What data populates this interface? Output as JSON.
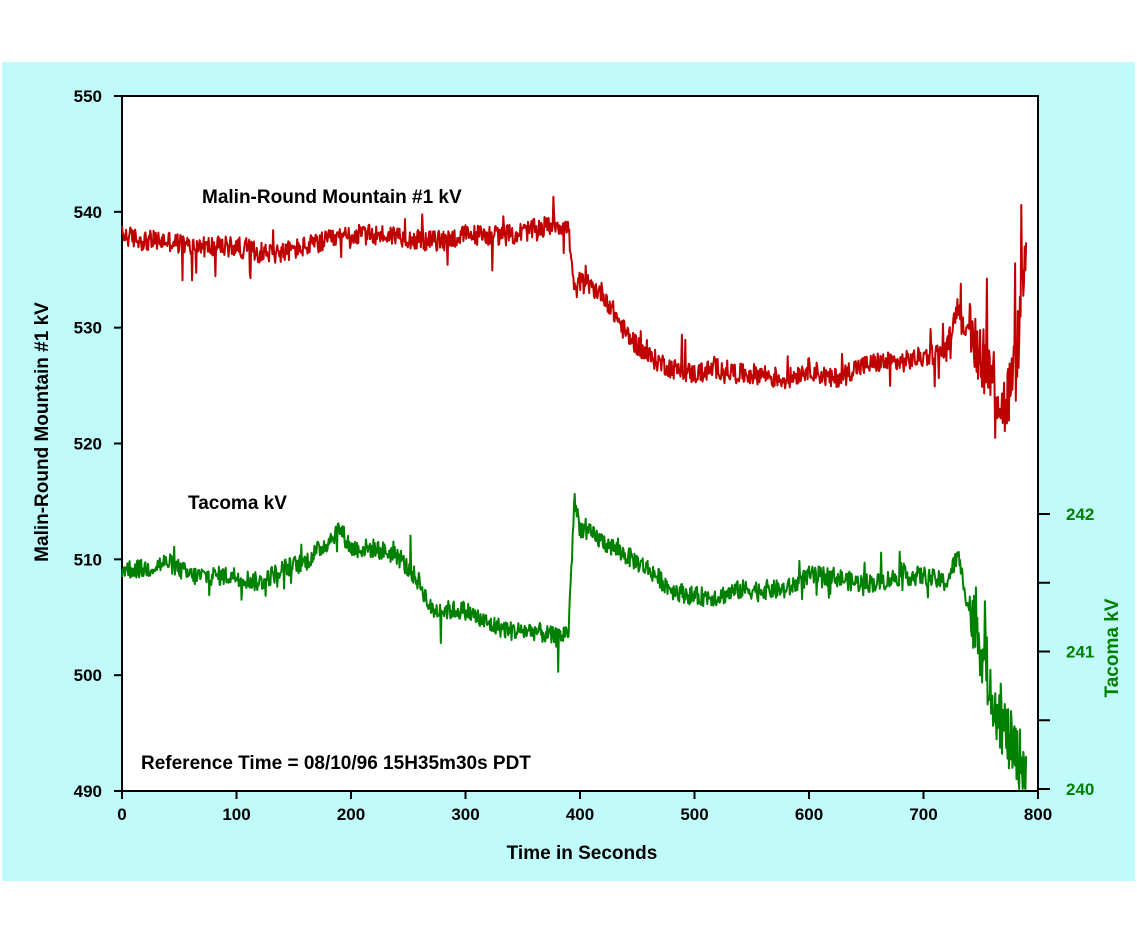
{
  "chart_data": {
    "type": "line",
    "title": "",
    "xlabel": "Time in Seconds",
    "ylabel": "Malin-Round Mountain #1  kV",
    "y2label": "Tacoma  kV",
    "xlim": [
      0,
      800
    ],
    "ylim": [
      490,
      550
    ],
    "y2lim": [
      240,
      242.2
    ],
    "x_ticks": [
      "0",
      "100",
      "200",
      "300",
      "400",
      "500",
      "600",
      "700",
      "800"
    ],
    "y_ticks": [
      "490",
      "500",
      "510",
      "520",
      "530",
      "540",
      "550"
    ],
    "y2_ticks": [
      "240",
      "241",
      "242"
    ],
    "annotation": "Reference Time = 08/10/96 15H35m30s  PDT",
    "grid": false,
    "legend": "none",
    "background": "#c0fafa",
    "series": [
      {
        "name": "Malin-Round Mountain #1 kV",
        "label": "Malin-Round Mountain #1 kV",
        "axis": "left",
        "color": "#c00000",
        "x": [
          0,
          20,
          40,
          60,
          80,
          100,
          120,
          140,
          160,
          180,
          200,
          220,
          240,
          260,
          280,
          300,
          320,
          340,
          360,
          380,
          390,
          395,
          400,
          420,
          440,
          460,
          480,
          500,
          520,
          540,
          560,
          580,
          600,
          620,
          640,
          660,
          680,
          700,
          720,
          730,
          740,
          750,
          760,
          770,
          780,
          790
        ],
        "y": [
          538,
          537.5,
          537.5,
          537,
          537,
          537,
          536.5,
          536.5,
          537,
          537.5,
          538,
          538,
          538,
          537.5,
          537.5,
          538,
          538,
          538,
          538.5,
          539,
          538.5,
          533,
          534,
          533,
          529.5,
          527.5,
          526.5,
          526,
          526.5,
          526,
          526,
          525.5,
          526.5,
          525.5,
          526.5,
          527,
          527,
          527.5,
          528,
          532,
          529,
          528,
          526,
          523,
          526,
          537
        ]
      },
      {
        "name": "Tacoma kV",
        "label": "Tacoma  kV",
        "axis": "right",
        "color": "#008000",
        "x": [
          0,
          20,
          40,
          60,
          80,
          100,
          120,
          140,
          160,
          180,
          190,
          200,
          220,
          240,
          260,
          270,
          280,
          300,
          320,
          340,
          360,
          380,
          390,
          395,
          400,
          420,
          440,
          460,
          480,
          500,
          520,
          540,
          560,
          580,
          600,
          620,
          640,
          660,
          680,
          700,
          720,
          730,
          740,
          750,
          760,
          770,
          780,
          790
        ],
        "y": [
          241.6,
          241.6,
          241.65,
          241.55,
          241.55,
          241.55,
          241.5,
          241.6,
          241.65,
          241.8,
          241.9,
          241.75,
          241.75,
          241.7,
          241.5,
          241.3,
          241.3,
          241.3,
          241.2,
          241.15,
          241.15,
          241.1,
          241.15,
          242.1,
          241.9,
          241.8,
          241.7,
          241.6,
          241.45,
          241.4,
          241.4,
          241.45,
          241.45,
          241.45,
          241.55,
          241.55,
          241.5,
          241.5,
          241.55,
          241.55,
          241.5,
          241.7,
          241.3,
          241.05,
          240.7,
          240.45,
          240.25,
          240.15
        ]
      }
    ]
  }
}
